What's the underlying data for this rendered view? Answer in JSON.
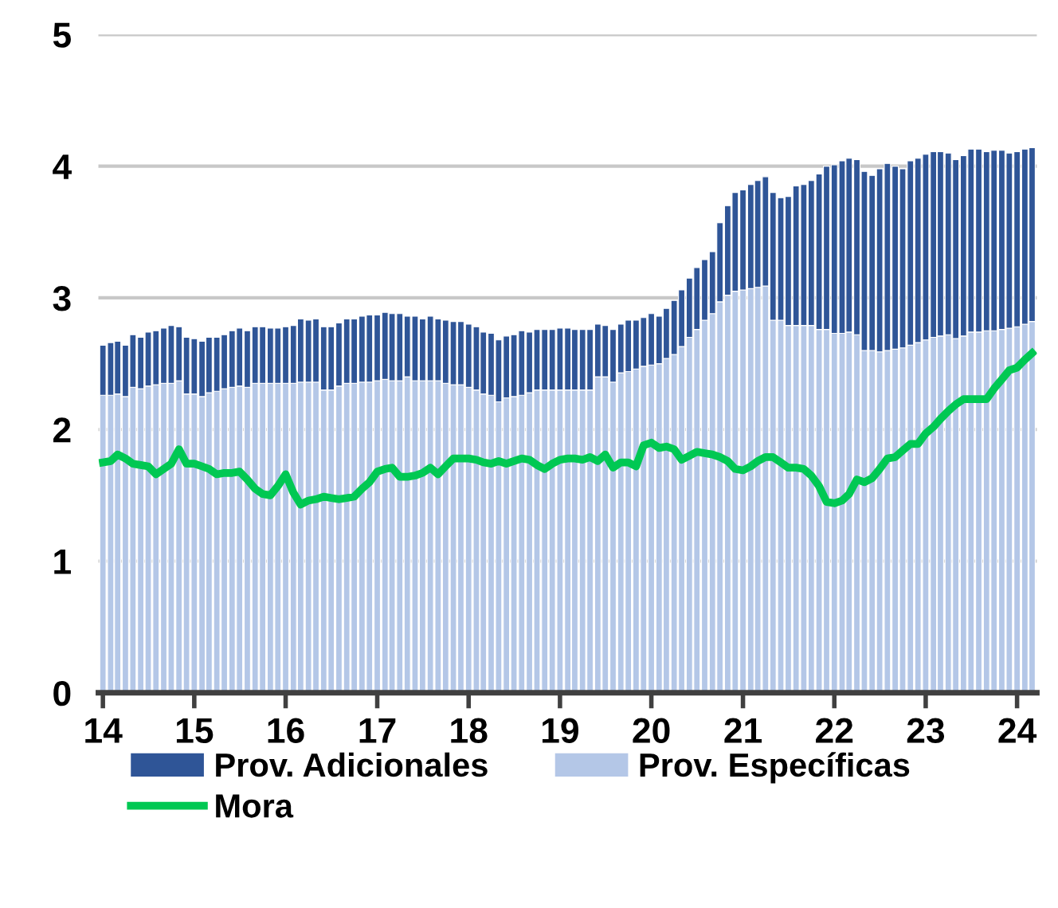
{
  "chart_data": {
    "type": "bar",
    "stacked": true,
    "x": [
      "2014-01",
      "2014-02",
      "2014-03",
      "2014-04",
      "2014-05",
      "2014-06",
      "2014-07",
      "2014-08",
      "2014-09",
      "2014-10",
      "2014-11",
      "2014-12",
      "2015-01",
      "2015-02",
      "2015-03",
      "2015-04",
      "2015-05",
      "2015-06",
      "2015-07",
      "2015-08",
      "2015-09",
      "2015-10",
      "2015-11",
      "2015-12",
      "2016-01",
      "2016-02",
      "2016-03",
      "2016-04",
      "2016-05",
      "2016-06",
      "2016-07",
      "2016-08",
      "2016-09",
      "2016-10",
      "2016-11",
      "2016-12",
      "2017-01",
      "2017-02",
      "2017-03",
      "2017-04",
      "2017-05",
      "2017-06",
      "2017-07",
      "2017-08",
      "2017-09",
      "2017-10",
      "2017-11",
      "2017-12",
      "2018-01",
      "2018-02",
      "2018-03",
      "2018-04",
      "2018-05",
      "2018-06",
      "2018-07",
      "2018-08",
      "2018-09",
      "2018-10",
      "2018-11",
      "2018-12",
      "2019-01",
      "2019-02",
      "2019-03",
      "2019-04",
      "2019-05",
      "2019-06",
      "2019-07",
      "2019-08",
      "2019-09",
      "2019-10",
      "2019-11",
      "2019-12",
      "2020-01",
      "2020-02",
      "2020-03",
      "2020-04",
      "2020-05",
      "2020-06",
      "2020-07",
      "2020-08",
      "2020-09",
      "2020-10",
      "2020-11",
      "2020-12",
      "2021-01",
      "2021-02",
      "2021-03",
      "2021-04",
      "2021-05",
      "2021-06",
      "2021-07",
      "2021-08",
      "2021-09",
      "2021-10",
      "2021-11",
      "2021-12",
      "2022-01",
      "2022-02",
      "2022-03",
      "2022-04",
      "2022-05",
      "2022-06",
      "2022-07",
      "2022-08",
      "2022-09",
      "2022-10",
      "2022-11",
      "2022-12",
      "2023-01",
      "2023-02",
      "2023-03",
      "2023-04",
      "2023-05",
      "2023-06",
      "2023-07",
      "2023-08",
      "2023-09",
      "2023-10",
      "2023-11",
      "2023-12",
      "2024-01",
      "2024-02",
      "2024-03"
    ],
    "series": [
      {
        "name": "Prov. Específicas",
        "color": "#b4c7e7",
        "values": [
          2.26,
          2.26,
          2.27,
          2.25,
          2.32,
          2.31,
          2.33,
          2.34,
          2.35,
          2.35,
          2.37,
          2.27,
          2.27,
          2.25,
          2.28,
          2.29,
          2.31,
          2.32,
          2.33,
          2.32,
          2.35,
          2.35,
          2.35,
          2.35,
          2.35,
          2.35,
          2.36,
          2.36,
          2.36,
          2.3,
          2.3,
          2.33,
          2.35,
          2.35,
          2.36,
          2.36,
          2.37,
          2.38,
          2.37,
          2.37,
          2.4,
          2.37,
          2.37,
          2.37,
          2.37,
          2.35,
          2.34,
          2.34,
          2.32,
          2.3,
          2.27,
          2.26,
          2.21,
          2.24,
          2.25,
          2.26,
          2.28,
          2.3,
          2.3,
          2.3,
          2.3,
          2.3,
          2.3,
          2.3,
          2.3,
          2.4,
          2.4,
          2.36,
          2.43,
          2.44,
          2.46,
          2.48,
          2.49,
          2.5,
          2.54,
          2.57,
          2.63,
          2.7,
          2.76,
          2.83,
          2.88,
          2.97,
          3.02,
          3.05,
          3.06,
          3.07,
          3.08,
          3.09,
          2.83,
          2.83,
          2.79,
          2.79,
          2.79,
          2.79,
          2.76,
          2.76,
          2.73,
          2.73,
          2.74,
          2.72,
          2.6,
          2.6,
          2.59,
          2.6,
          2.61,
          2.62,
          2.64,
          2.66,
          2.68,
          2.7,
          2.71,
          2.72,
          2.69,
          2.71,
          2.74,
          2.74,
          2.75,
          2.75,
          2.76,
          2.77,
          2.78,
          2.8,
          2.82
        ]
      },
      {
        "name": "Prov. Adicionales",
        "color": "#2f5597",
        "values": [
          0.38,
          0.4,
          0.4,
          0.39,
          0.4,
          0.39,
          0.41,
          0.41,
          0.42,
          0.44,
          0.41,
          0.43,
          0.42,
          0.42,
          0.42,
          0.41,
          0.41,
          0.43,
          0.44,
          0.43,
          0.43,
          0.43,
          0.42,
          0.42,
          0.43,
          0.44,
          0.48,
          0.47,
          0.48,
          0.48,
          0.48,
          0.48,
          0.49,
          0.49,
          0.5,
          0.51,
          0.5,
          0.51,
          0.51,
          0.51,
          0.46,
          0.49,
          0.47,
          0.49,
          0.47,
          0.48,
          0.48,
          0.48,
          0.48,
          0.48,
          0.47,
          0.47,
          0.47,
          0.47,
          0.47,
          0.49,
          0.46,
          0.46,
          0.46,
          0.46,
          0.47,
          0.47,
          0.46,
          0.46,
          0.46,
          0.4,
          0.39,
          0.4,
          0.37,
          0.39,
          0.37,
          0.37,
          0.39,
          0.36,
          0.38,
          0.41,
          0.43,
          0.45,
          0.47,
          0.46,
          0.47,
          0.6,
          0.68,
          0.75,
          0.76,
          0.79,
          0.81,
          0.83,
          0.97,
          0.93,
          0.98,
          1.06,
          1.07,
          1.1,
          1.18,
          1.24,
          1.28,
          1.31,
          1.32,
          1.33,
          1.36,
          1.33,
          1.39,
          1.42,
          1.39,
          1.36,
          1.4,
          1.4,
          1.41,
          1.41,
          1.4,
          1.38,
          1.36,
          1.37,
          1.39,
          1.39,
          1.36,
          1.37,
          1.36,
          1.33,
          1.33,
          1.33,
          1.32
        ]
      },
      {
        "name": "Mora",
        "type": "line",
        "color": "#00c853",
        "values": [
          1.75,
          1.76,
          1.81,
          1.78,
          1.74,
          1.73,
          1.72,
          1.66,
          1.7,
          1.74,
          1.85,
          1.74,
          1.74,
          1.72,
          1.7,
          1.66,
          1.67,
          1.67,
          1.68,
          1.62,
          1.55,
          1.51,
          1.5,
          1.57,
          1.66,
          1.52,
          1.43,
          1.46,
          1.47,
          1.49,
          1.48,
          1.47,
          1.48,
          1.49,
          1.55,
          1.6,
          1.68,
          1.7,
          1.71,
          1.64,
          1.64,
          1.65,
          1.67,
          1.71,
          1.66,
          1.72,
          1.78,
          1.78,
          1.78,
          1.77,
          1.75,
          1.74,
          1.76,
          1.74,
          1.76,
          1.78,
          1.77,
          1.73,
          1.7,
          1.74,
          1.77,
          1.78,
          1.78,
          1.77,
          1.79,
          1.76,
          1.81,
          1.71,
          1.75,
          1.75,
          1.72,
          1.88,
          1.9,
          1.86,
          1.87,
          1.85,
          1.77,
          1.8,
          1.83,
          1.82,
          1.81,
          1.79,
          1.76,
          1.7,
          1.69,
          1.72,
          1.76,
          1.79,
          1.79,
          1.75,
          1.71,
          1.71,
          1.7,
          1.65,
          1.57,
          1.45,
          1.44,
          1.46,
          1.51,
          1.62,
          1.6,
          1.63,
          1.7,
          1.78,
          1.79,
          1.84,
          1.89,
          1.89,
          1.97,
          2.02,
          2.08,
          2.14,
          2.19,
          2.23,
          2.23,
          2.23,
          2.23,
          2.31,
          2.38,
          2.45,
          2.47,
          2.53,
          2.58
        ]
      }
    ],
    "xlim": [
      "2013-12-14",
      "2024-03-20"
    ],
    "xticks": [
      {
        "value": "2014-01-01",
        "label": "14"
      },
      {
        "value": "2015-01-01",
        "label": "15"
      },
      {
        "value": "2016-01-01",
        "label": "16"
      },
      {
        "value": "2017-01-01",
        "label": "17"
      },
      {
        "value": "2018-01-01",
        "label": "18"
      },
      {
        "value": "2019-01-01",
        "label": "19"
      },
      {
        "value": "2020-01-01",
        "label": "20"
      },
      {
        "value": "2021-01-01",
        "label": "21"
      },
      {
        "value": "2022-01-01",
        "label": "22"
      },
      {
        "value": "2023-01-01",
        "label": "23"
      },
      {
        "value": "2024-01-01",
        "label": "24"
      }
    ],
    "ylim": [
      0,
      5
    ],
    "yticks": [
      0,
      1,
      2,
      3,
      4,
      5
    ],
    "grid": "y",
    "legend": "bottom",
    "marker": "none",
    "line_style": "solid"
  }
}
